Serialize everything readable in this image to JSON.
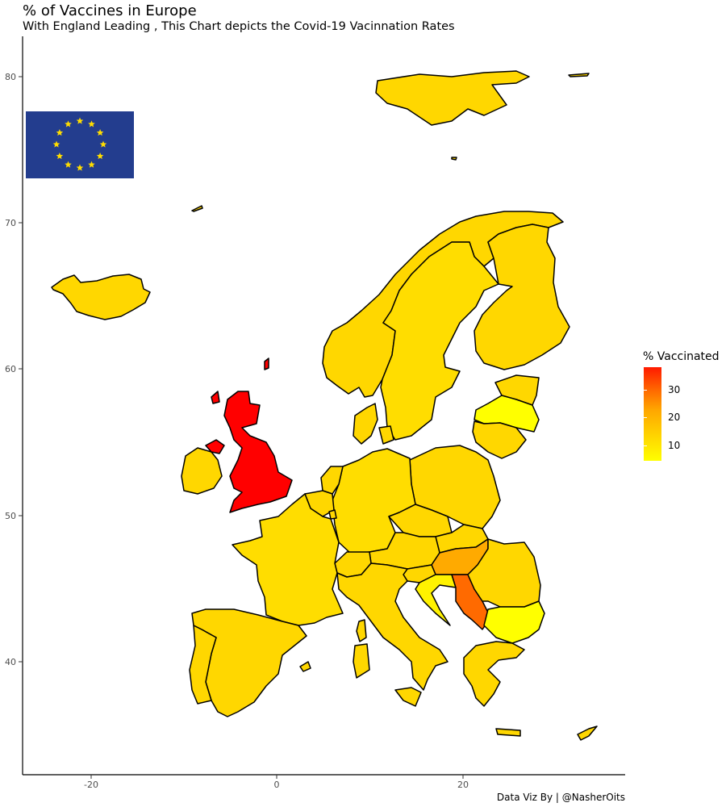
{
  "title": "% of Vaccines in Europe",
  "subtitle": "With England Leading , This Chart depicts the Covid-19 Vacinnation Rates",
  "caption": "Data Viz By | @NasherOits",
  "legend": {
    "title": "% Vaccinated",
    "ticks": [
      "30",
      "20",
      "10"
    ],
    "range": [
      3,
      38
    ],
    "low_color": "#ffff00",
    "high_color": "#ff0000"
  },
  "axes": {
    "x_ticks": [
      "-20",
      "0",
      "20"
    ],
    "y_ticks": [
      "80",
      "70",
      "60",
      "50",
      "40"
    ]
  },
  "flag": {
    "name": "EU flag",
    "bg_color": "#233d8e",
    "star_color": "#ffdd00",
    "stars": 12
  },
  "colors": {
    "red": "#ff0000",
    "orange_dark": "#ff6a00",
    "orange": "#ffaa00",
    "gold": "#ffd700",
    "gold2": "#ffdd00",
    "yellow": "#ffff00",
    "yellow2": "#fff200"
  },
  "chart_data": {
    "type": "choropleth",
    "metric": "% Vaccinated",
    "regions": [
      {
        "name": "United Kingdom",
        "value": 38
      },
      {
        "name": "Serbia",
        "value": 27
      },
      {
        "name": "Hungary",
        "value": 18
      },
      {
        "name": "Bulgaria",
        "value": 3
      },
      {
        "name": "Lithuania",
        "value": 5
      },
      {
        "name": "Croatia",
        "value": 5
      },
      {
        "name": "Iceland",
        "value": 11
      },
      {
        "name": "Norway",
        "value": 10
      },
      {
        "name": "Sweden",
        "value": 9
      },
      {
        "name": "Finland",
        "value": 10
      },
      {
        "name": "Estonia",
        "value": 10
      },
      {
        "name": "Latvia",
        "value": 6
      },
      {
        "name": "Denmark",
        "value": 11
      },
      {
        "name": "Poland",
        "value": 9
      },
      {
        "name": "Germany",
        "value": 9
      },
      {
        "name": "Netherlands",
        "value": 9
      },
      {
        "name": "Belgium",
        "value": 9
      },
      {
        "name": "France",
        "value": 9
      },
      {
        "name": "Spain",
        "value": 10
      },
      {
        "name": "Portugal",
        "value": 10
      },
      {
        "name": "Ireland",
        "value": 8
      },
      {
        "name": "Italy",
        "value": 9
      },
      {
        "name": "Switzerland",
        "value": 9
      },
      {
        "name": "Austria",
        "value": 9
      },
      {
        "name": "Czechia",
        "value": 9
      },
      {
        "name": "Slovakia",
        "value": 9
      },
      {
        "name": "Slovenia",
        "value": 10
      },
      {
        "name": "Romania",
        "value": 9
      },
      {
        "name": "Greece",
        "value": 10
      },
      {
        "name": "Cyprus",
        "value": 10
      }
    ]
  }
}
